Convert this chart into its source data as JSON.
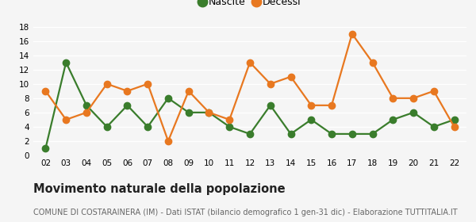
{
  "x_labels": [
    "02",
    "03",
    "04",
    "05",
    "06",
    "07",
    "08",
    "09",
    "10",
    "11",
    "12",
    "13",
    "14",
    "15",
    "16",
    "17",
    "18",
    "19",
    "20",
    "21",
    "22"
  ],
  "x_values": [
    2,
    3,
    4,
    5,
    6,
    7,
    8,
    9,
    10,
    11,
    12,
    13,
    14,
    15,
    16,
    17,
    18,
    19,
    20,
    21,
    22
  ],
  "nascite": [
    1,
    13,
    7,
    4,
    7,
    4,
    8,
    6,
    6,
    4,
    3,
    7,
    3,
    5,
    3,
    3,
    3,
    5,
    6,
    4,
    5
  ],
  "decessi": [
    9,
    5,
    6,
    10,
    9,
    10,
    2,
    9,
    6,
    5,
    13,
    10,
    11,
    7,
    7,
    17,
    13,
    8,
    8,
    9,
    4
  ],
  "nascite_color": "#3a7d2c",
  "decessi_color": "#e87820",
  "background_color": "#f5f5f5",
  "grid_color": "#ffffff",
  "title": "Movimento naturale della popolazione",
  "subtitle": "COMUNE DI COSTARAINERA (IM) - Dati ISTAT (bilancio demografico 1 gen-31 dic) - Elaborazione TUTTITALIA.IT",
  "legend_nascite": "Nascite",
  "legend_decessi": "Decessi",
  "ylim": [
    0,
    18
  ],
  "yticks": [
    0,
    2,
    4,
    6,
    8,
    10,
    12,
    14,
    16,
    18
  ],
  "marker_size": 6,
  "line_width": 1.6,
  "title_fontsize": 10.5,
  "subtitle_fontsize": 7,
  "tick_fontsize": 7.5,
  "legend_fontsize": 9
}
